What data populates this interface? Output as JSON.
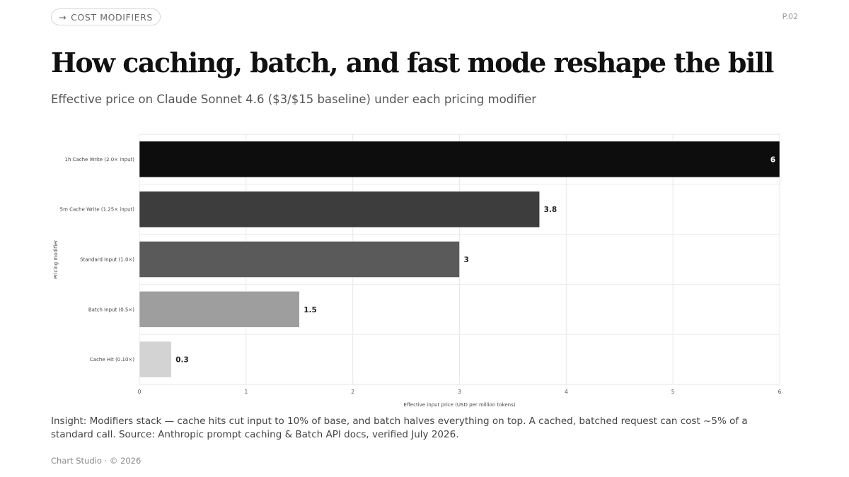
{
  "header": {
    "pill_arrow": "→",
    "pill_label": "COST MODIFIERS",
    "page_number": "P.02"
  },
  "title": "How caching, batch, and fast mode reshape the bill",
  "subtitle": "Effective price on Claude Sonnet 4.6 ($3/$15 baseline) under each pricing modifier",
  "chart_data": {
    "type": "bar",
    "orientation": "horizontal",
    "categories": [
      "1h Cache Write (2.0× input)",
      "5m Cache Write (1.25× input)",
      "Standard Input (1.0×)",
      "Batch Input (0.5×)",
      "Cache Hit (0.10×)"
    ],
    "values": [
      6,
      3.75,
      3,
      1.5,
      0.3
    ],
    "data_labels": [
      "6",
      "3.8",
      "3",
      "1.5",
      "0.3"
    ],
    "colors": [
      "#0d0d0d",
      "#3d3d3d",
      "#5a5a5a",
      "#9e9e9e",
      "#d3d3d3"
    ],
    "xlabel": "Effective input price (USD per million tokens)",
    "ylabel": "Pricing modifier",
    "xlim": [
      0,
      6
    ],
    "xticks": [
      0,
      1,
      2,
      3,
      4,
      5,
      6
    ],
    "grid": true
  },
  "insight": "Insight: Modifiers stack — cache hits cut input to 10% of base, and batch halves everything on top. A cached, batched request can cost ~5% of a standard call. Source: Anthropic prompt caching & Batch API docs, verified July 2026.",
  "footer": "Chart Studio · © 2026"
}
